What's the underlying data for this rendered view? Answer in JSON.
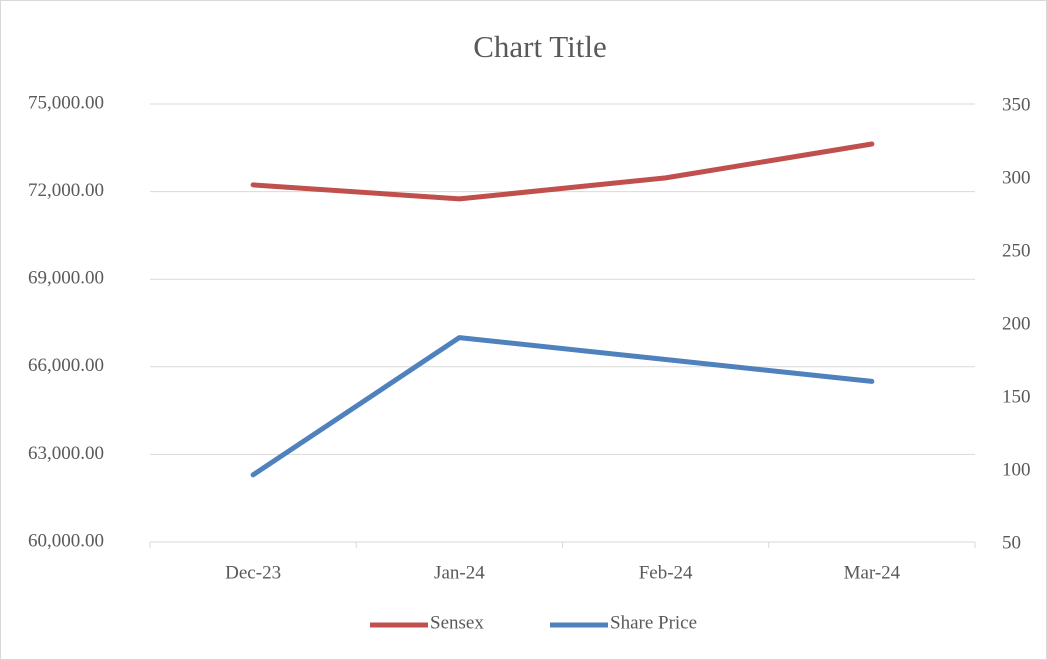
{
  "chart_data": {
    "type": "line",
    "title": "Chart Title",
    "categories": [
      "Dec-23",
      "Jan-24",
      "Feb-24",
      "Mar-24"
    ],
    "series": [
      {
        "name": "Sensex",
        "color": "#c0504d",
        "values": [
          72230,
          71750,
          72470,
          73630
        ]
      },
      {
        "name": "Share Price",
        "color": "#4f81bd",
        "axis": "y2",
        "values": [
          96,
          190,
          175,
          160
        ]
      }
    ],
    "ylim": [
      60000,
      75000
    ],
    "yticks": [
      {
        "value": 60000,
        "label": "60,000.00"
      },
      {
        "value": 63000,
        "label": "63,000.00"
      },
      {
        "value": 66000,
        "label": "66,000.00"
      },
      {
        "value": 69000,
        "label": "69,000.00"
      },
      {
        "value": 72000,
        "label": "72,000.00"
      },
      {
        "value": 75000,
        "label": "75,000.00"
      }
    ],
    "y2lim": [
      50,
      350
    ],
    "y2ticks": [
      50,
      100,
      150,
      200,
      250,
      300,
      350
    ],
    "grid": true,
    "legend": "bottom"
  }
}
